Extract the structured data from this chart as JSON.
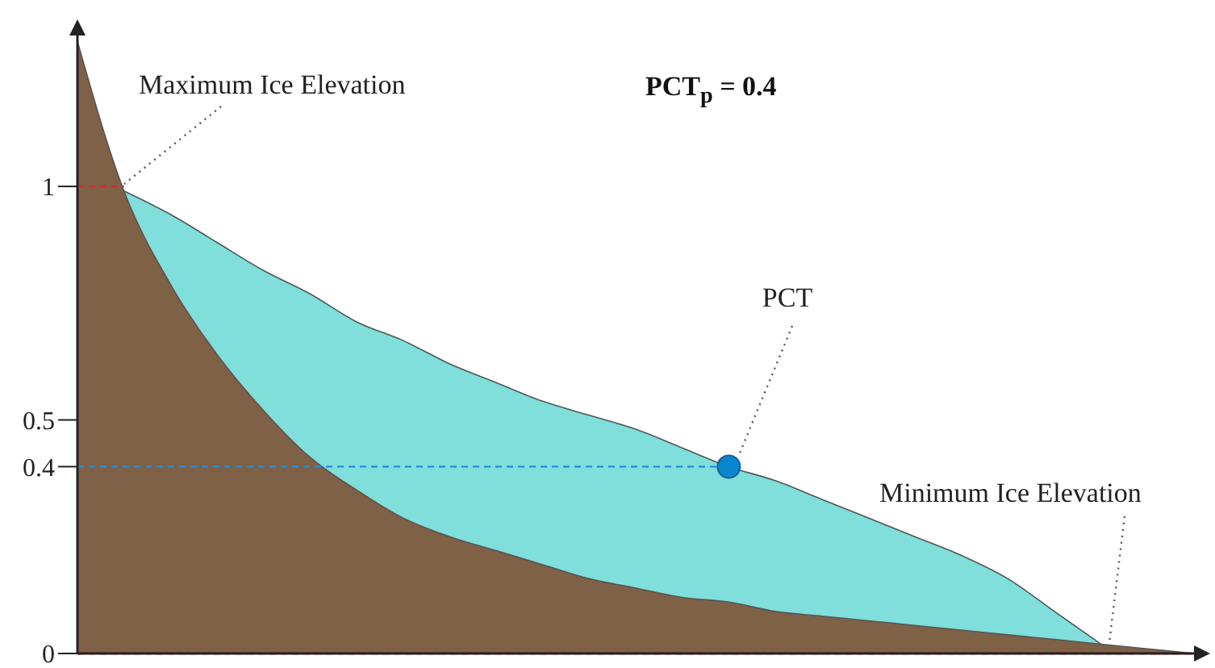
{
  "chart_data": {
    "type": "area",
    "title": "PCT$_{p}$ = 0.4",
    "categories": [
      null,
      null,
      null,
      null,
      null,
      null,
      null,
      null,
      null,
      null,
      null,
      null,
      null,
      null,
      null,
      null,
      null,
      null,
      null,
      null,
      null,
      null,
      null,
      null,
      null
    ],
    "series": [
      {
        "color": "#80dedb",
        "values": [
          null,
          0.99,
          0.94,
          0.88,
          0.82,
          0.77,
          0.71,
          0.67,
          0.62,
          0.58,
          0.54,
          0.51,
          0.48,
          0.44,
          0.4,
          0.37,
          0.33,
          0.29,
          0.25,
          0.21,
          0.16,
          0.09,
          0.02,
          null,
          null
        ]
      },
      {
        "color": "#7f6147",
        "values": [
          1.31,
          0.99,
          0.79,
          0.64,
          0.52,
          0.42,
          0.35,
          0.29,
          0.25,
          0.22,
          0.19,
          0.16,
          0.14,
          0.12,
          0.11,
          0.09,
          0.08,
          0.07,
          0.06,
          0.05,
          0.04,
          0.03,
          0.02,
          0.01,
          0
        ]
      },
      {
        "type": "line",
        "color": "#d62e2e",
        "values": [
          1,
          1,
          null,
          null,
          null,
          null,
          null,
          null,
          null,
          null,
          null,
          null,
          null,
          null,
          null,
          null,
          null,
          null,
          null,
          null,
          null,
          null,
          null,
          null,
          null
        ]
      },
      {
        "type": "line",
        "color": "#1e90e0",
        "values": [
          0.4,
          0.4,
          0.4,
          0.4,
          0.4,
          0.4,
          0.4,
          0.4,
          0.4,
          0.4,
          0.4,
          0.4,
          0.4,
          0.4,
          0.4,
          null,
          null,
          null,
          null,
          null,
          null,
          null,
          null,
          null,
          null
        ]
      },
      {
        "type": "scatter",
        "color": "#0a86d0",
        "values": [
          null,
          null,
          null,
          null,
          null,
          null,
          null,
          null,
          null,
          null,
          null,
          null,
          null,
          null,
          0.4,
          null,
          null,
          null,
          null,
          null,
          null,
          null,
          null,
          null,
          null
        ]
      }
    ],
    "ylim": [
      0,
      1.33
    ],
    "yticks": [
      0,
      0.4,
      0.5,
      1
    ],
    "ref_lines": [
      {
        "axis": "y",
        "value": 0,
        "color": "#d62e2e",
        "line_style": "dashed"
      }
    ],
    "line_style": "dashed",
    "annotations": [
      "Maximum Ice Elevation",
      "PCT",
      "Minimum Ice Elevation"
    ]
  }
}
